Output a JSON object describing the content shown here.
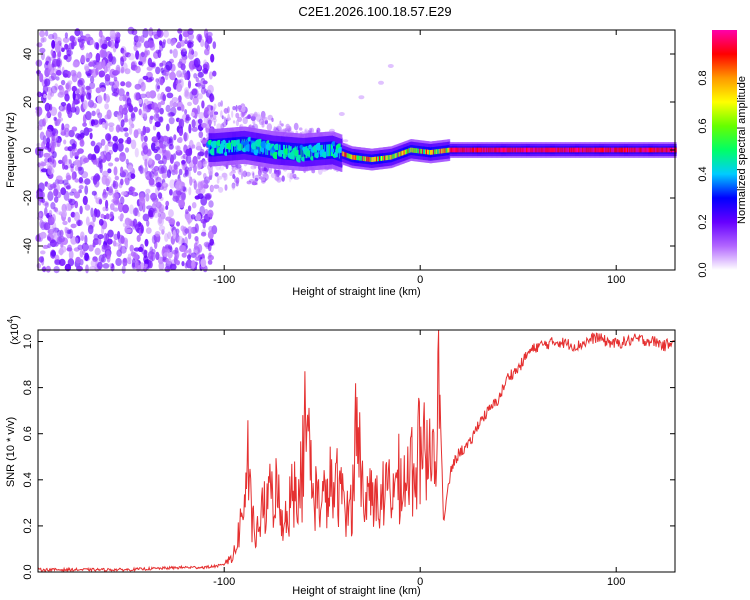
{
  "title": "C2E1.2026.100.18.57.E29",
  "chart_data": [
    {
      "type": "heatmap",
      "name": "spectrogram",
      "xlabel": "Height of straight line (km)",
      "ylabel": "Frequency (Hz)",
      "xlim": [
        -195,
        130
      ],
      "ylim": [
        -50,
        50
      ],
      "xticks": [
        -100,
        0,
        100
      ],
      "yticks": [
        -40,
        -20,
        0,
        20,
        40
      ],
      "ridge": [
        {
          "x": -105,
          "y": 1
        },
        {
          "x": -90,
          "y": 2
        },
        {
          "x": -75,
          "y": 0
        },
        {
          "x": -60,
          "y": -1
        },
        {
          "x": -45,
          "y": 0
        },
        {
          "x": -35,
          "y": -3
        },
        {
          "x": -25,
          "y": -4
        },
        {
          "x": -15,
          "y": -3
        },
        {
          "x": -5,
          "y": 0
        },
        {
          "x": 5,
          "y": -1
        },
        {
          "x": 15,
          "y": 0
        },
        {
          "x": 50,
          "y": 0
        },
        {
          "x": 100,
          "y": 0
        },
        {
          "x": 130,
          "y": 0
        }
      ],
      "colorbar": {
        "label": "Normalized spectral amplitude",
        "range": [
          0,
          1
        ],
        "ticks": [
          "0.0",
          "0.2",
          "0.4",
          "0.6",
          "0.8"
        ],
        "colors": [
          "#ffffff",
          "#b266ff",
          "#6600ff",
          "#0000ff",
          "#00ccff",
          "#00ff66",
          "#66ff00",
          "#ffff00",
          "#ff9900",
          "#ff0000",
          "#ff00aa"
        ]
      }
    },
    {
      "type": "line",
      "name": "snr",
      "xlabel": "Height of straight line (km)",
      "ylabel": "SNR (10 * v/v)",
      "multiplier_label": "(x10",
      "multiplier_exp": "4",
      "xlim": [
        -195,
        130
      ],
      "ylim": [
        0,
        1.05
      ],
      "xticks": [
        -100,
        0,
        100
      ],
      "yticks": [
        "0.0",
        "0.2",
        "0.4",
        "0.6",
        "0.8",
        "1.0"
      ],
      "color": "#e53030",
      "series": {
        "x": [
          -195,
          -150,
          -120,
          -110,
          -100,
          -95,
          -92,
          -90,
          -88,
          -86,
          -84,
          -80,
          -75,
          -70,
          -65,
          -60,
          -58,
          -55,
          -50,
          -45,
          -40,
          -35,
          -32,
          -30,
          -28,
          -25,
          -20,
          -15,
          -10,
          -5,
          0,
          3,
          5,
          8,
          10,
          12,
          14,
          16,
          20,
          25,
          30,
          40,
          45,
          50,
          55,
          60,
          70,
          80,
          90,
          95,
          100,
          110,
          120,
          125,
          130
        ],
        "y": [
          0.01,
          0.01,
          0.02,
          0.02,
          0.03,
          0.06,
          0.15,
          0.25,
          0.38,
          0.2,
          0.12,
          0.22,
          0.3,
          0.18,
          0.28,
          0.35,
          0.55,
          0.3,
          0.25,
          0.3,
          0.28,
          0.22,
          0.6,
          0.3,
          0.25,
          0.3,
          0.25,
          0.3,
          0.3,
          0.35,
          0.4,
          0.42,
          0.45,
          0.6,
          0.78,
          0.2,
          0.35,
          0.45,
          0.52,
          0.55,
          0.65,
          0.75,
          0.85,
          0.88,
          0.95,
          0.98,
          1.0,
          0.98,
          1.02,
          1.0,
          0.99,
          1.01,
          1.0,
          0.98,
          1.02
        ]
      }
    }
  ]
}
